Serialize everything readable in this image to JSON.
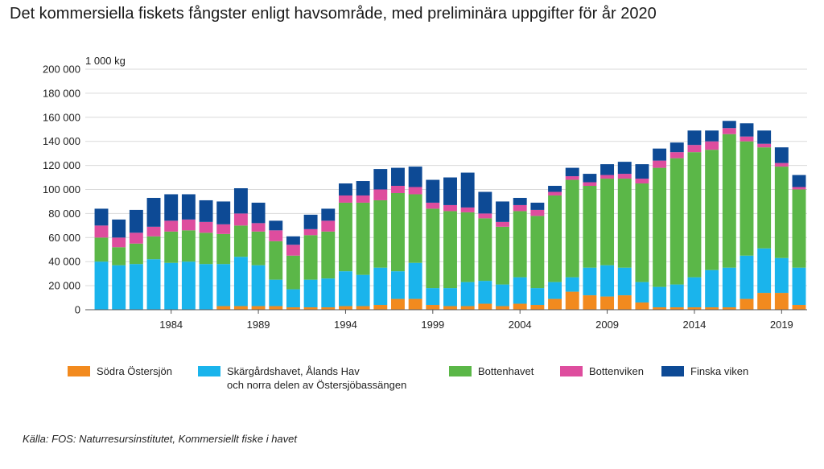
{
  "title": "Det kommersiella fiskets fångster enligt havsområde, med preliminära uppgifter för år 2020",
  "source": "Källa: FOS: Naturresursinstitutet, Kommersiellt fiske i havet",
  "chart_data": {
    "type": "bar",
    "stacked": true,
    "unit_label": "1 000 kg",
    "ylim": [
      0,
      200000
    ],
    "yticks": [
      0,
      20000,
      40000,
      60000,
      80000,
      100000,
      120000,
      140000,
      160000,
      180000,
      200000
    ],
    "ytick_labels": [
      "0",
      "20 000",
      "40 000",
      "60 000",
      "80 000",
      "100 000",
      "120 000",
      "140 000",
      "160 000",
      "180 000",
      "200 000"
    ],
    "x_tick_labels": [
      "1984",
      "1989",
      "1994",
      "1999",
      "2004",
      "2009",
      "2014",
      "2019"
    ],
    "x_tick_values": [
      1984,
      1989,
      1994,
      1999,
      2004,
      2009,
      2014,
      2019
    ],
    "grid": true,
    "legend_position": "bottom",
    "categories": [
      1980,
      1981,
      1982,
      1983,
      1984,
      1985,
      1986,
      1987,
      1988,
      1989,
      1990,
      1991,
      1992,
      1993,
      1994,
      1995,
      1996,
      1997,
      1998,
      1999,
      2000,
      2001,
      2002,
      2003,
      2004,
      2005,
      2006,
      2007,
      2008,
      2009,
      2010,
      2011,
      2012,
      2013,
      2014,
      2015,
      2016,
      2017,
      2018,
      2019,
      2020
    ],
    "series": [
      {
        "name": "Södra Östersjön",
        "color": "#f28a1e",
        "values": [
          0,
          0,
          0,
          0,
          0,
          0,
          0,
          3000,
          3000,
          3000,
          3000,
          2000,
          2000,
          2000,
          3000,
          3000,
          4000,
          9000,
          9000,
          4000,
          3000,
          3000,
          5000,
          3000,
          5000,
          4000,
          9000,
          15000,
          12000,
          11000,
          12000,
          6000,
          2000,
          2000,
          2000,
          2000,
          2000,
          9000,
          14000,
          14000,
          4000
        ]
      },
      {
        "name": "Skärgårdshavet, Ålands Hav\noch norra delen av Östersjöbassängen",
        "color": "#1ab4ec",
        "values": [
          40000,
          37000,
          38000,
          42000,
          39000,
          40000,
          38000,
          35000,
          41000,
          34000,
          22000,
          15000,
          23000,
          24000,
          29000,
          26000,
          31000,
          23000,
          30000,
          14000,
          15000,
          20000,
          19000,
          18000,
          22000,
          14000,
          14000,
          12000,
          23000,
          26000,
          23000,
          17000,
          17000,
          19000,
          25000,
          31000,
          33000,
          36000,
          37000,
          29000,
          31000
        ]
      },
      {
        "name": "Bottenhavet",
        "color": "#5bb748",
        "values": [
          20000,
          15000,
          17000,
          19000,
          26000,
          26000,
          26000,
          25000,
          26000,
          28000,
          32000,
          28000,
          37000,
          39000,
          57000,
          60000,
          56000,
          65000,
          57000,
          66000,
          64000,
          58000,
          52000,
          48000,
          55000,
          60000,
          72000,
          81000,
          68000,
          72000,
          74000,
          82000,
          99000,
          105000,
          104000,
          100000,
          111000,
          95000,
          84000,
          76000,
          65000
        ]
      },
      {
        "name": "Bottenviken",
        "color": "#de4d9e",
        "values": [
          10000,
          8000,
          9000,
          8000,
          9000,
          9000,
          9000,
          8000,
          10000,
          7000,
          9000,
          9000,
          5000,
          9000,
          6000,
          6000,
          9000,
          6000,
          6000,
          5000,
          5000,
          4000,
          4000,
          4000,
          5000,
          5000,
          3000,
          3000,
          3000,
          3000,
          4000,
          4000,
          6000,
          5000,
          6000,
          7000,
          5000,
          4000,
          3000,
          3000,
          2000
        ]
      },
      {
        "name": "Finska viken",
        "color": "#0d4a95",
        "values": [
          14000,
          15000,
          19000,
          24000,
          22000,
          21000,
          18000,
          19000,
          21000,
          17000,
          8000,
          7000,
          12000,
          10000,
          10000,
          12000,
          17000,
          15000,
          17000,
          19000,
          23000,
          29000,
          18000,
          17000,
          6000,
          6000,
          5000,
          7000,
          7000,
          9000,
          10000,
          12000,
          10000,
          8000,
          12000,
          9000,
          6000,
          11000,
          11000,
          13000,
          10000
        ]
      }
    ]
  }
}
